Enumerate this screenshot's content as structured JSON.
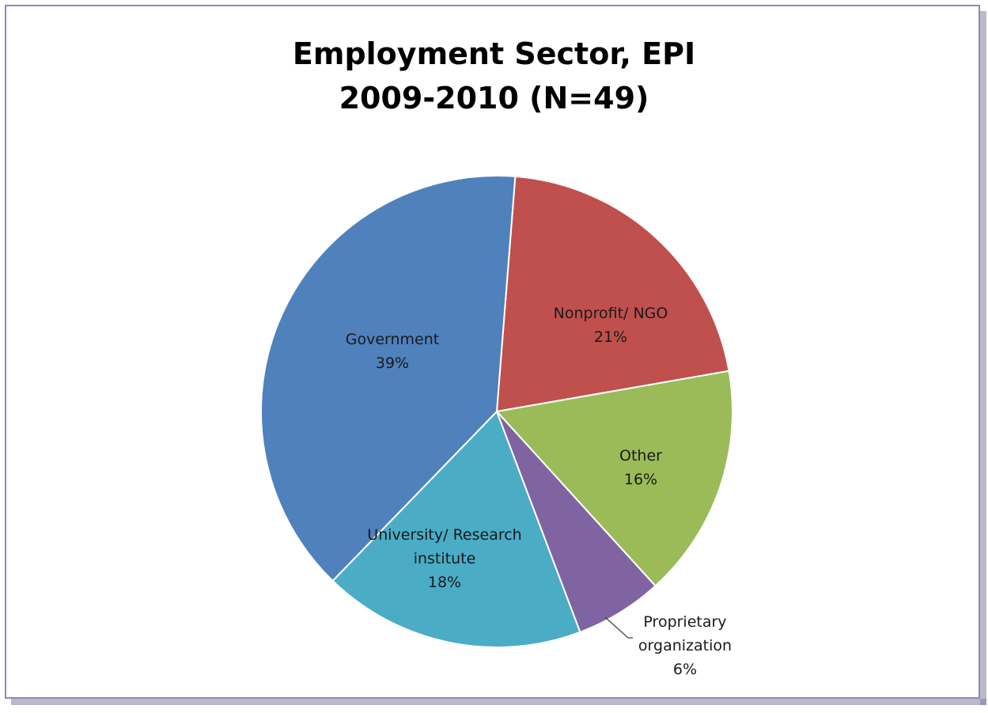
{
  "chart_data": {
    "type": "pie",
    "title_lines": [
      "Employment Sector, EPI",
      "2009-2010 (N=49)"
    ],
    "slices": [
      {
        "label_lines": [
          "Nonprofit/ NGO"
        ],
        "pct_label": "21%",
        "value": 21,
        "color": "#C0504D"
      },
      {
        "label_lines": [
          "Other"
        ],
        "pct_label": "16%",
        "value": 16,
        "color": "#9BBB59"
      },
      {
        "label_lines": [
          "Proprietary",
          "organization"
        ],
        "pct_label": "6%",
        "value": 6,
        "color": "#8064A2"
      },
      {
        "label_lines": [
          "University/ Research",
          "institute"
        ],
        "pct_label": "18%",
        "value": 18,
        "color": "#4BACC6"
      },
      {
        "label_lines": [
          "Government"
        ],
        "pct_label": "39%",
        "value": 39,
        "color": "#4F81BD"
      }
    ],
    "start_angle_deg": 4.5,
    "legend": "none"
  }
}
